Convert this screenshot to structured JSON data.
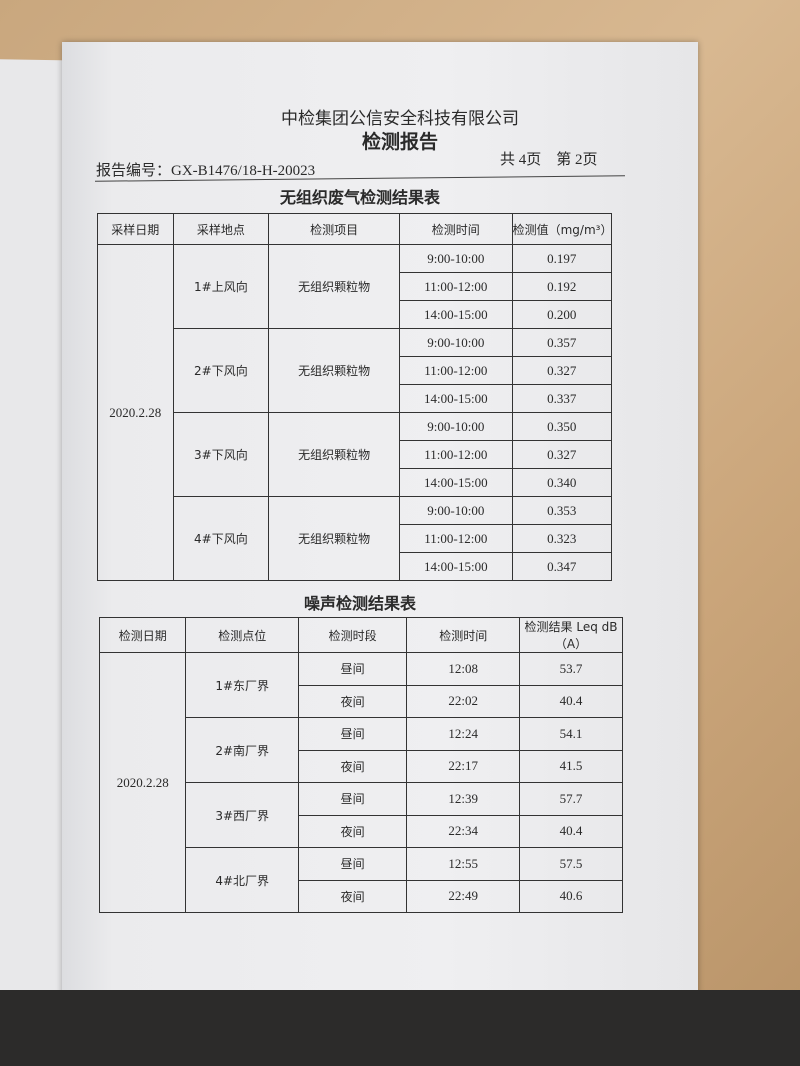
{
  "header": {
    "company": "中检集团公信安全科技有限公司",
    "title": "检测报告",
    "report_no": "报告编号：GX-B1476/18-H-20023",
    "pages": "共 4页　第 2页"
  },
  "air_table": {
    "title": "无组织废气检测结果表",
    "columns": [
      "采样日期",
      "采样地点",
      "检测项目",
      "检测时间",
      "检测值（mg/m³）"
    ],
    "date": "2020.2.28",
    "groups": [
      {
        "location": "1#上风向",
        "item": "无组织颗粒物",
        "rows": [
          [
            "9:00-10:00",
            "0.197"
          ],
          [
            "11:00-12:00",
            "0.192"
          ],
          [
            "14:00-15:00",
            "0.200"
          ]
        ]
      },
      {
        "location": "2#下风向",
        "item": "无组织颗粒物",
        "rows": [
          [
            "9:00-10:00",
            "0.357"
          ],
          [
            "11:00-12:00",
            "0.327"
          ],
          [
            "14:00-15:00",
            "0.337"
          ]
        ]
      },
      {
        "location": "3#下风向",
        "item": "无组织颗粒物",
        "rows": [
          [
            "9:00-10:00",
            "0.350"
          ],
          [
            "11:00-12:00",
            "0.327"
          ],
          [
            "14:00-15:00",
            "0.340"
          ]
        ]
      },
      {
        "location": "4#下风向",
        "item": "无组织颗粒物",
        "rows": [
          [
            "9:00-10:00",
            "0.353"
          ],
          [
            "11:00-12:00",
            "0.323"
          ],
          [
            "14:00-15:00",
            "0.347"
          ]
        ]
      }
    ]
  },
  "noise_table": {
    "title": "噪声检测结果表",
    "columns": [
      "检测日期",
      "检测点位",
      "检测时段",
      "检测时间",
      "检测结果 Leq dB（A）"
    ],
    "date": "2020.2.28",
    "groups": [
      {
        "point": "1#东厂界",
        "rows": [
          [
            "昼间",
            "12:08",
            "53.7"
          ],
          [
            "夜间",
            "22:02",
            "40.4"
          ]
        ]
      },
      {
        "point": "2#南厂界",
        "rows": [
          [
            "昼间",
            "12:24",
            "54.1"
          ],
          [
            "夜间",
            "22:17",
            "41.5"
          ]
        ]
      },
      {
        "point": "3#西厂界",
        "rows": [
          [
            "昼间",
            "12:39",
            "57.7"
          ],
          [
            "夜间",
            "22:34",
            "40.4"
          ]
        ]
      },
      {
        "point": "4#北厂界",
        "rows": [
          [
            "昼间",
            "12:55",
            "57.5"
          ],
          [
            "夜间",
            "22:49",
            "40.6"
          ]
        ]
      }
    ]
  }
}
